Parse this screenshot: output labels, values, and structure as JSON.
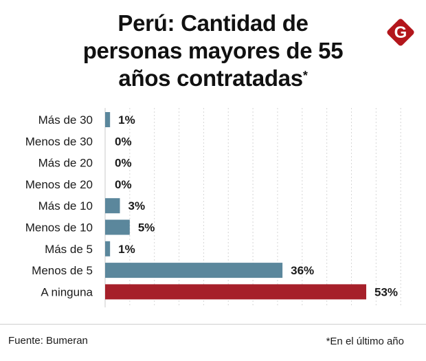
{
  "header": {
    "title_lines": [
      "Perú: Cantidad de",
      "personas mayores de 55",
      "años contratadas"
    ],
    "asterisk": "*",
    "logo_letter": "G"
  },
  "colors": {
    "default_bar": "#5b879c",
    "highlight_bar": "#a6202a",
    "logo": "#b3161c"
  },
  "chart_data": {
    "type": "bar",
    "orientation": "horizontal",
    "title": "Perú: Cantidad de personas mayores de 55 años contratadas*",
    "categories": [
      "Más de 30",
      "Menos de 30",
      "Más de 20",
      "Menos de 20",
      "Más de 10",
      "Menos de 10",
      "Más de 5",
      "Menos de 5",
      "A ninguna"
    ],
    "values": [
      1,
      0,
      0,
      0,
      3,
      5,
      1,
      36,
      53
    ],
    "labels": [
      "1%",
      "0%",
      "0%",
      "0%",
      "3%",
      "5%",
      "1%",
      "36%",
      "53%"
    ],
    "highlight": [
      false,
      false,
      false,
      false,
      false,
      false,
      false,
      false,
      true
    ],
    "xlim": [
      0,
      60
    ],
    "unit": "%",
    "grid": true
  },
  "footer": {
    "source": "Fuente: Bumeran",
    "note": "*En el último año"
  }
}
